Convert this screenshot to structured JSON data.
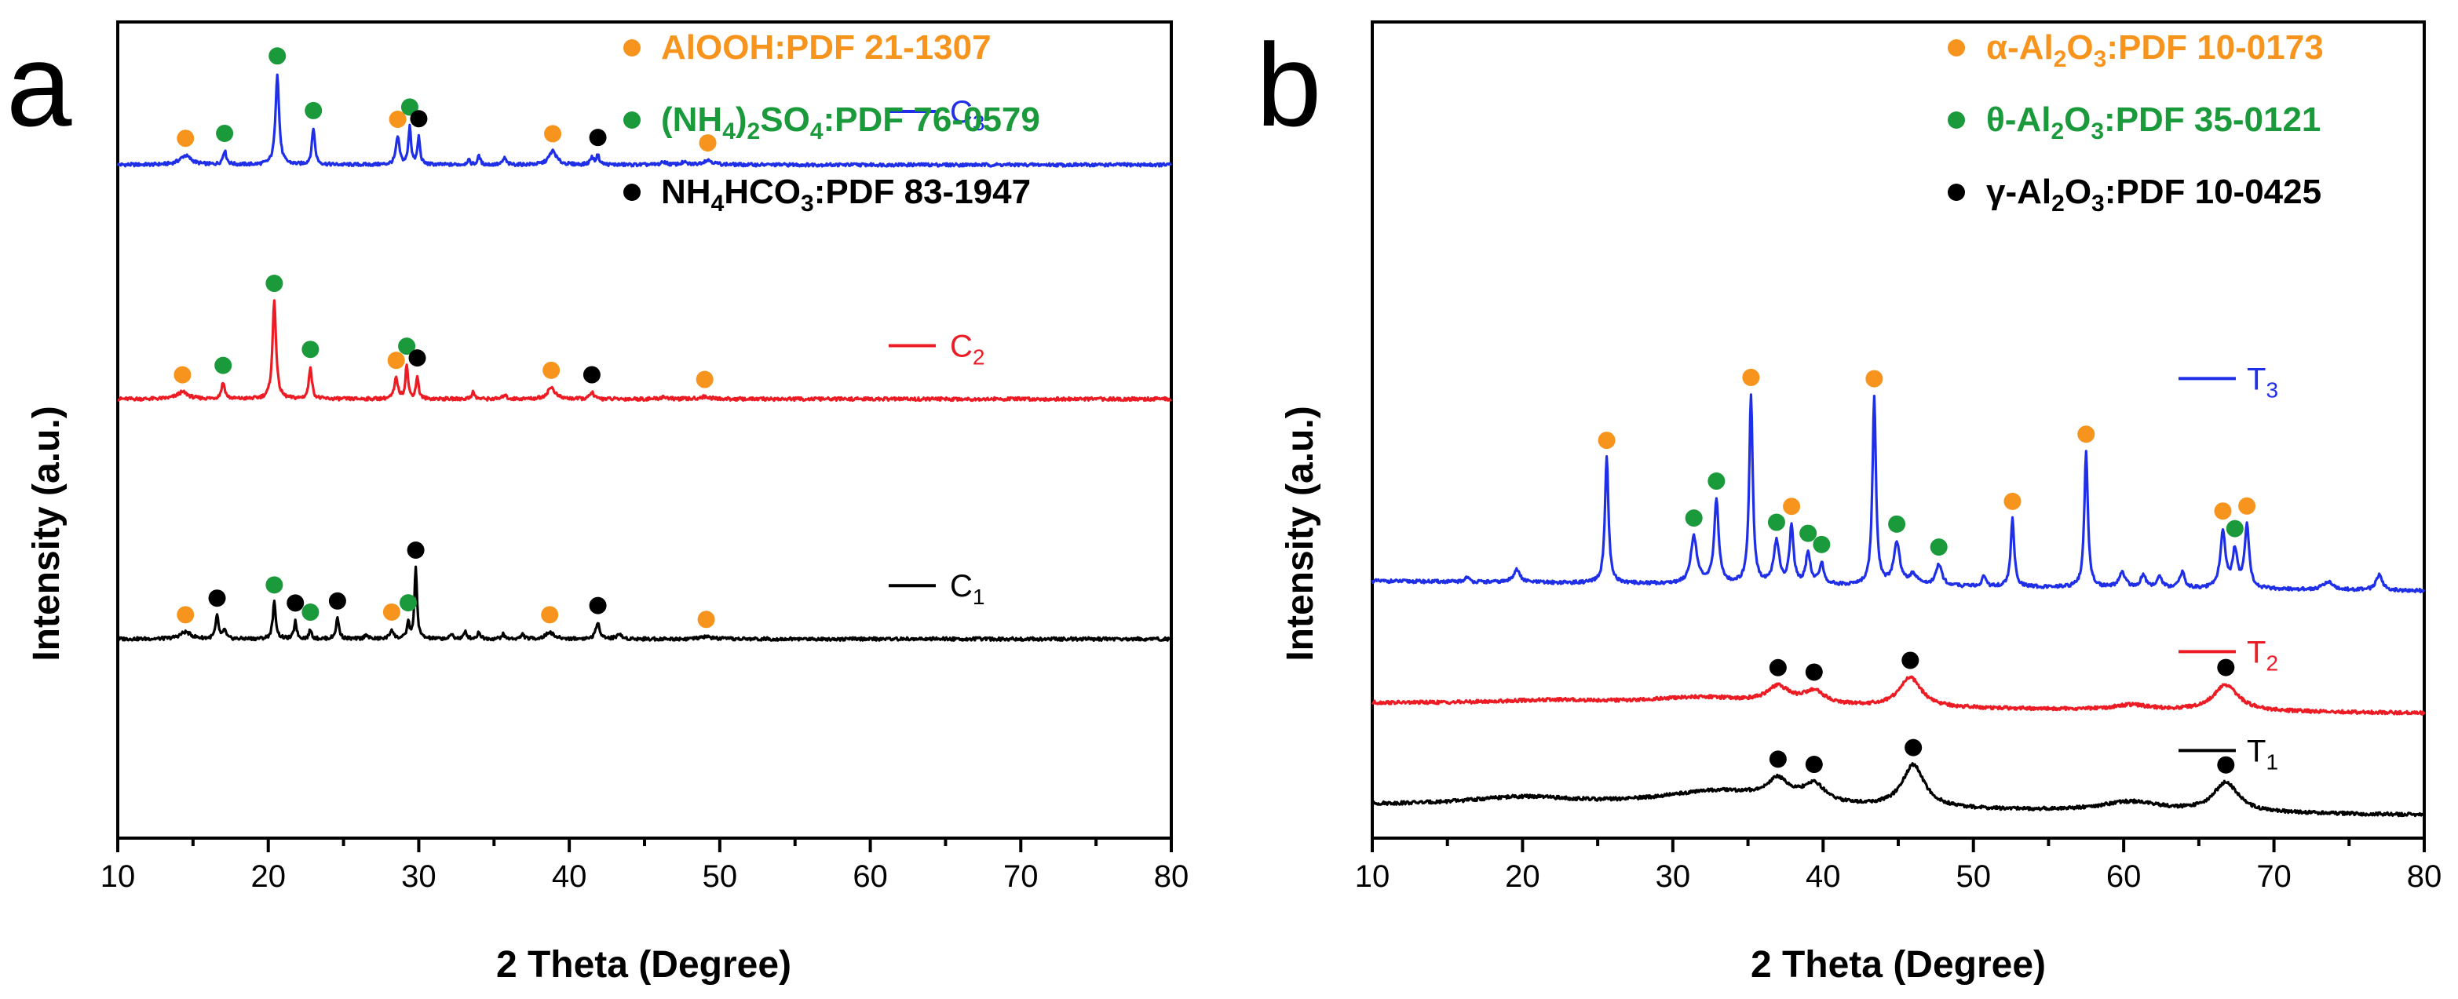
{
  "chart_data": [
    {
      "panel": "a",
      "type": "line",
      "xlabel": "2 Theta (Degree)",
      "ylabel": "Intensity (a.u.)",
      "xlim": [
        10,
        80
      ],
      "xticks": [
        10,
        20,
        30,
        40,
        50,
        60,
        70,
        80
      ],
      "yticks_shown": false,
      "legend": [
        {
          "label": "AlOOH:PDF 21-1307",
          "color": "#f7941d",
          "label_parts": [
            [
              "AlOOH:PDF 21-1307",
              ""
            ]
          ]
        },
        {
          "label": "(NH4)2SO4:PDF 76-0579",
          "color": "#1a9a3a",
          "label_parts": [
            [
              "(NH",
              ""
            ],
            [
              "4",
              "sub"
            ],
            [
              ")",
              ""
            ],
            [
              "2",
              "sub"
            ],
            [
              "SO",
              ""
            ],
            [
              "4",
              "sub"
            ],
            [
              ":PDF 76-0579",
              ""
            ]
          ]
        },
        {
          "label": "NH4HCO3:PDF 83-1947",
          "color": "#000000",
          "label_parts": [
            [
              "NH",
              ""
            ],
            [
              "4",
              "sub"
            ],
            [
              "HCO",
              ""
            ],
            [
              "3",
              "sub"
            ],
            [
              ":PDF 83-1947",
              ""
            ]
          ]
        }
      ],
      "series": [
        {
          "name": "C3",
          "label_main": "C",
          "label_sub": "3",
          "color": "#1f2fe8",
          "baseline": 0.825,
          "scale": 0.28,
          "peaks": [
            [
              14.5,
              0.04,
              0.45
            ],
            [
              17.1,
              0.06,
              0.14
            ],
            [
              20.6,
              0.4,
              0.14
            ],
            [
              23.0,
              0.16,
              0.12
            ],
            [
              28.6,
              0.12,
              0.14
            ],
            [
              29.4,
              0.17,
              0.1
            ],
            [
              30.0,
              0.12,
              0.1
            ],
            [
              33.3,
              0.02,
              0.12
            ],
            [
              34.0,
              0.04,
              0.1
            ],
            [
              35.7,
              0.03,
              0.12
            ],
            [
              38.9,
              0.06,
              0.3
            ],
            [
              41.5,
              0.03,
              0.14
            ],
            [
              41.9,
              0.04,
              0.12
            ],
            [
              46.3,
              0.012,
              0.2
            ],
            [
              47.6,
              0.01,
              0.2
            ],
            [
              49.2,
              0.02,
              0.4
            ]
          ],
          "markers": [
            [
              14.5,
              "AlOOH"
            ],
            [
              17.1,
              "(NH4)2SO4"
            ],
            [
              20.6,
              "(NH4)2SO4"
            ],
            [
              23.0,
              "(NH4)2SO4"
            ],
            [
              28.6,
              "AlOOH"
            ],
            [
              29.4,
              "(NH4)2SO4"
            ],
            [
              30.0,
              "NH4HCO3"
            ],
            [
              38.9,
              "AlOOH"
            ],
            [
              41.9,
              "NH4HCO3"
            ],
            [
              49.2,
              "AlOOH"
            ]
          ]
        },
        {
          "name": "C2",
          "label_main": "C",
          "label_sub": "2",
          "color": "#ed1c24",
          "baseline": 0.538,
          "scale": 0.28,
          "peaks": [
            [
              14.3,
              0.03,
              0.45
            ],
            [
              17.0,
              0.07,
              0.14
            ],
            [
              20.4,
              0.43,
              0.14
            ],
            [
              22.8,
              0.14,
              0.12
            ],
            [
              28.5,
              0.09,
              0.14
            ],
            [
              29.2,
              0.15,
              0.1
            ],
            [
              29.9,
              0.1,
              0.1
            ],
            [
              33.6,
              0.03,
              0.12
            ],
            [
              35.7,
              0.02,
              0.12
            ],
            [
              38.8,
              0.05,
              0.3
            ],
            [
              41.5,
              0.03,
              0.14
            ],
            [
              46.3,
              0.01,
              0.2
            ],
            [
              49.0,
              0.01,
              0.4
            ]
          ],
          "markers": [
            [
              14.3,
              "AlOOH"
            ],
            [
              17.0,
              "(NH4)2SO4"
            ],
            [
              20.4,
              "(NH4)2SO4"
            ],
            [
              22.8,
              "(NH4)2SO4"
            ],
            [
              28.5,
              "AlOOH"
            ],
            [
              29.2,
              "(NH4)2SO4"
            ],
            [
              29.9,
              "NH4HCO3"
            ],
            [
              38.8,
              "AlOOH"
            ],
            [
              41.5,
              "NH4HCO3"
            ],
            [
              49.0,
              "AlOOH"
            ]
          ]
        },
        {
          "name": "C1",
          "label_main": "C",
          "label_sub": "1",
          "color": "#000000",
          "baseline": 0.244,
          "scale": 0.28,
          "peaks": [
            [
              14.5,
              0.03,
              0.45
            ],
            [
              16.6,
              0.1,
              0.12
            ],
            [
              17.1,
              0.04,
              0.1
            ],
            [
              20.4,
              0.16,
              0.12
            ],
            [
              21.8,
              0.08,
              0.1
            ],
            [
              22.8,
              0.04,
              0.1
            ],
            [
              24.6,
              0.09,
              0.12
            ],
            [
              26.5,
              0.02,
              0.12
            ],
            [
              28.2,
              0.04,
              0.14
            ],
            [
              29.3,
              0.07,
              0.1
            ],
            [
              29.8,
              0.31,
              0.1
            ],
            [
              32.2,
              0.02,
              0.12
            ],
            [
              33.1,
              0.03,
              0.12
            ],
            [
              34.0,
              0.03,
              0.12
            ],
            [
              35.6,
              0.02,
              0.12
            ],
            [
              36.9,
              0.02,
              0.12
            ],
            [
              38.7,
              0.03,
              0.3
            ],
            [
              41.9,
              0.07,
              0.16
            ],
            [
              43.3,
              0.02,
              0.2
            ],
            [
              49.1,
              0.01,
              0.4
            ]
          ],
          "markers": [
            [
              14.5,
              "AlOOH"
            ],
            [
              16.6,
              "NH4HCO3"
            ],
            [
              20.4,
              "(NH4)2SO4"
            ],
            [
              21.8,
              "NH4HCO3"
            ],
            [
              22.8,
              "(NH4)2SO4"
            ],
            [
              24.6,
              "NH4HCO3"
            ],
            [
              28.2,
              "AlOOH"
            ],
            [
              29.3,
              "(NH4)2SO4"
            ],
            [
              29.8,
              "NH4HCO3"
            ],
            [
              38.7,
              "AlOOH"
            ],
            [
              41.9,
              "NH4HCO3"
            ],
            [
              49.1,
              "AlOOH"
            ]
          ]
        }
      ]
    },
    {
      "panel": "b",
      "type": "line",
      "xlabel": "2 Theta (Degree)",
      "ylabel": "Intensity (a.u.)",
      "xlim": [
        10,
        80
      ],
      "xticks": [
        10,
        20,
        30,
        40,
        50,
        60,
        70,
        80
      ],
      "yticks_shown": false,
      "legend": [
        {
          "label": "α-Al2O3:PDF 10-0173",
          "color": "#f7941d",
          "label_parts": [
            [
              "α-Al",
              ""
            ],
            [
              "2",
              "sub"
            ],
            [
              "O",
              ""
            ],
            [
              "3",
              "sub"
            ],
            [
              ":PDF 10-0173",
              ""
            ]
          ]
        },
        {
          "label": "θ-Al2O3:PDF 35-0121",
          "color": "#1a9a3a",
          "label_parts": [
            [
              "θ-Al",
              ""
            ],
            [
              "2",
              "sub"
            ],
            [
              "O",
              ""
            ],
            [
              "3",
              "sub"
            ],
            [
              ":PDF 35-0121",
              ""
            ]
          ]
        },
        {
          "label": "γ-Al2O3:PDF 10-0425",
          "color": "#000000",
          "label_parts": [
            [
              "γ-Al",
              ""
            ],
            [
              "2",
              "sub"
            ],
            [
              "O",
              ""
            ],
            [
              "3",
              "sub"
            ],
            [
              ":PDF 10-0425",
              ""
            ]
          ]
        }
      ],
      "series": [
        {
          "name": "T3",
          "label_main": "T",
          "label_sub": "3",
          "color": "#1f2fe8",
          "baseline": 0.315,
          "scale": 0.64,
          "peaks": [
            [
              16.3,
              0.01,
              0.15
            ],
            [
              19.6,
              0.025,
              0.25
            ],
            [
              25.6,
              0.24,
              0.14
            ],
            [
              31.4,
              0.09,
              0.25
            ],
            [
              32.9,
              0.16,
              0.18
            ],
            [
              35.2,
              0.36,
              0.14
            ],
            [
              36.9,
              0.08,
              0.22
            ],
            [
              37.9,
              0.11,
              0.16
            ],
            [
              39.0,
              0.06,
              0.18
            ],
            [
              39.9,
              0.04,
              0.18
            ],
            [
              43.4,
              0.36,
              0.14
            ],
            [
              44.9,
              0.08,
              0.25
            ],
            [
              46.0,
              0.02,
              0.3
            ],
            [
              47.7,
              0.04,
              0.25
            ],
            [
              50.7,
              0.02,
              0.15
            ],
            [
              52.6,
              0.13,
              0.14
            ],
            [
              57.5,
              0.26,
              0.14
            ],
            [
              59.9,
              0.03,
              0.25
            ],
            [
              61.3,
              0.025,
              0.2
            ],
            [
              62.4,
              0.02,
              0.2
            ],
            [
              63.9,
              0.03,
              0.2
            ],
            [
              66.6,
              0.11,
              0.2
            ],
            [
              67.4,
              0.07,
              0.2
            ],
            [
              68.2,
              0.12,
              0.18
            ],
            [
              73.6,
              0.015,
              0.4
            ],
            [
              77.0,
              0.03,
              0.25
            ]
          ],
          "markers": [
            [
              25.6,
              "alpha"
            ],
            [
              31.4,
              "theta"
            ],
            [
              32.9,
              "theta"
            ],
            [
              35.2,
              "alpha"
            ],
            [
              36.9,
              "theta"
            ],
            [
              37.9,
              "alpha"
            ],
            [
              39.0,
              "theta"
            ],
            [
              39.9,
              "theta"
            ],
            [
              43.4,
              "alpha"
            ],
            [
              44.9,
              "theta"
            ],
            [
              47.7,
              "theta"
            ],
            [
              52.6,
              "alpha"
            ],
            [
              57.5,
              "alpha"
            ],
            [
              66.6,
              "alpha"
            ],
            [
              67.4,
              "theta"
            ],
            [
              68.2,
              "alpha"
            ]
          ]
        },
        {
          "name": "T2",
          "label_main": "T",
          "label_sub": "2",
          "color": "#ed1c24",
          "baseline": 0.165,
          "scale": 0.4,
          "peaks": [
            [
              22.0,
              0.012,
              5.0
            ],
            [
              32.0,
              0.025,
              4.5
            ],
            [
              37.0,
              0.05,
              0.9
            ],
            [
              39.4,
              0.04,
              0.9
            ],
            [
              45.8,
              0.09,
              0.9
            ],
            [
              60.5,
              0.015,
              1.5
            ],
            [
              66.8,
              0.08,
              1.0
            ]
          ],
          "markers": [
            [
              37.0,
              "gamma"
            ],
            [
              39.4,
              "gamma"
            ],
            [
              45.8,
              "gamma"
            ],
            [
              66.8,
              "gamma"
            ]
          ]
        },
        {
          "name": "T1",
          "label_main": "T",
          "label_sub": "1",
          "color": "#000000",
          "baseline": 0.04,
          "scale": 0.4,
          "peaks": [
            [
              20.0,
              0.025,
              4.5
            ],
            [
              33.0,
              0.05,
              5.0
            ],
            [
              37.0,
              0.06,
              0.9
            ],
            [
              39.4,
              0.055,
              0.9
            ],
            [
              46.0,
              0.13,
              0.9
            ],
            [
              60.5,
              0.03,
              2.5
            ],
            [
              66.8,
              0.09,
              1.0
            ]
          ],
          "markers": [
            [
              37.0,
              "gamma"
            ],
            [
              39.4,
              "gamma"
            ],
            [
              46.0,
              "gamma"
            ],
            [
              66.8,
              "gamma"
            ]
          ]
        }
      ]
    }
  ]
}
